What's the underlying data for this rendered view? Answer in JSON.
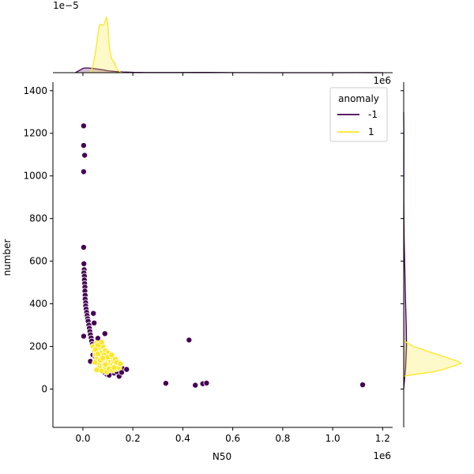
{
  "chart_data": {
    "type": "scatter",
    "subtype": "jointplot",
    "xlabel": "N50",
    "ylabel": "number",
    "x_offset_label": "1e6",
    "top_offset_label": "1e−5",
    "right_offset_label": "1e6",
    "xlim": [
      -0.12,
      1.24
    ],
    "ylim": [
      -180,
      1440
    ],
    "x_ticks": [
      0.0,
      0.2,
      0.4,
      0.6,
      0.8,
      1.0,
      1.2
    ],
    "x_tick_labels": [
      "0.0",
      "0.2",
      "0.4",
      "0.6",
      "0.8",
      "1.0",
      "1.2"
    ],
    "y_ticks": [
      0,
      200,
      400,
      600,
      800,
      1000,
      1200,
      1400
    ],
    "y_tick_labels": [
      "0",
      "200",
      "400",
      "600",
      "800",
      "1000",
      "1200",
      "1400"
    ],
    "legend": {
      "title": "anomaly",
      "position": "top-right",
      "entries": [
        "-1",
        "1"
      ]
    },
    "colors": {
      "-1": "#440154",
      "1": "#fde725"
    },
    "grid": false,
    "series": [
      {
        "name": "-1",
        "color": "#440154",
        "points": [
          [
            0.003,
            1235
          ],
          [
            0.003,
            1143
          ],
          [
            0.007,
            1097
          ],
          [
            0.003,
            1020
          ],
          [
            0.003,
            665
          ],
          [
            0.004,
            588
          ],
          [
            0.005,
            560
          ],
          [
            0.004,
            545
          ],
          [
            0.006,
            530
          ],
          [
            0.006,
            512
          ],
          [
            0.007,
            495
          ],
          [
            0.008,
            478
          ],
          [
            0.008,
            460
          ],
          [
            0.009,
            440
          ],
          [
            0.009,
            422
          ],
          [
            0.011,
            405
          ],
          [
            0.011,
            390
          ],
          [
            0.013,
            375
          ],
          [
            0.015,
            360
          ],
          [
            0.017,
            345
          ],
          [
            0.019,
            330
          ],
          [
            0.021,
            318
          ],
          [
            0.024,
            300
          ],
          [
            0.026,
            285
          ],
          [
            0.028,
            270
          ],
          [
            0.03,
            255
          ],
          [
            0.033,
            240
          ],
          [
            0.035,
            225
          ],
          [
            0.038,
            210
          ],
          [
            0.003,
            248
          ],
          [
            0.042,
            355
          ],
          [
            0.045,
            310
          ],
          [
            0.06,
            238
          ],
          [
            0.088,
            260
          ],
          [
            0.03,
            130
          ],
          [
            0.04,
            160
          ],
          [
            0.05,
            150
          ],
          [
            0.07,
            125
          ],
          [
            0.08,
            110
          ],
          [
            0.09,
            100
          ],
          [
            0.1,
            95
          ],
          [
            0.11,
            85
          ],
          [
            0.12,
            90
          ],
          [
            0.14,
            100
          ],
          [
            0.15,
            110
          ],
          [
            0.16,
            95
          ],
          [
            0.175,
            92
          ],
          [
            0.145,
            60
          ],
          [
            0.095,
            70
          ],
          [
            0.125,
            75
          ],
          [
            0.085,
            80
          ],
          [
            0.105,
            65
          ],
          [
            0.135,
            82
          ],
          [
            0.155,
            78
          ],
          [
            0.425,
            230
          ],
          [
            0.332,
            27
          ],
          [
            0.45,
            18
          ],
          [
            0.48,
            25
          ],
          [
            0.495,
            28
          ],
          [
            1.12,
            20
          ]
        ]
      },
      {
        "name": "1",
        "color": "#fde725",
        "points": [
          [
            0.04,
            200
          ],
          [
            0.045,
            180
          ],
          [
            0.05,
            160
          ],
          [
            0.055,
            140
          ],
          [
            0.06,
            120
          ],
          [
            0.065,
            190
          ],
          [
            0.07,
            170
          ],
          [
            0.075,
            150
          ],
          [
            0.08,
            130
          ],
          [
            0.085,
            110
          ],
          [
            0.09,
            100
          ],
          [
            0.095,
            140
          ],
          [
            0.1,
            125
          ],
          [
            0.105,
            115
          ],
          [
            0.11,
            135
          ],
          [
            0.115,
            105
          ],
          [
            0.12,
            120
          ],
          [
            0.125,
            130
          ],
          [
            0.13,
            110
          ],
          [
            0.135,
            95
          ],
          [
            0.14,
            115
          ],
          [
            0.145,
            125
          ],
          [
            0.07,
            210
          ],
          [
            0.08,
            200
          ],
          [
            0.055,
            215
          ],
          [
            0.06,
            205
          ],
          [
            0.075,
            220
          ],
          [
            0.05,
            185
          ],
          [
            0.09,
            180
          ],
          [
            0.1,
            170
          ],
          [
            0.11,
            150
          ],
          [
            0.065,
            100
          ],
          [
            0.055,
            90
          ],
          [
            0.075,
            85
          ],
          [
            0.095,
            80
          ],
          [
            0.085,
            160
          ],
          [
            0.105,
            95
          ],
          [
            0.12,
            88
          ],
          [
            0.13,
            140
          ],
          [
            0.145,
            100
          ],
          [
            0.07,
            135
          ],
          [
            0.08,
            145
          ],
          [
            0.06,
            165
          ],
          [
            0.09,
            115
          ],
          [
            0.1,
            150
          ],
          [
            0.115,
            160
          ],
          [
            0.125,
            100
          ],
          [
            0.135,
            125
          ],
          [
            0.15,
            118
          ],
          [
            0.048,
            125
          ]
        ]
      }
    ],
    "marginal_x_density": [
      {
        "name": "-1",
        "x": [
          -0.03,
          -0.01,
          0.0,
          0.01,
          0.02,
          0.04,
          0.06,
          0.08,
          0.1,
          0.13,
          0.16,
          0.2,
          0.25,
          0.3,
          0.35,
          0.4,
          0.45,
          0.5,
          0.6,
          0.8,
          1.0,
          1.1,
          1.15,
          1.2
        ],
        "y": [
          0.0,
          0.12,
          0.18,
          0.2,
          0.2,
          0.18,
          0.15,
          0.12,
          0.08,
          0.05,
          0.03,
          0.015,
          0.008,
          0.006,
          0.008,
          0.008,
          0.01,
          0.01,
          0.004,
          0.0,
          0.0,
          0.004,
          0.002,
          0.0
        ]
      },
      {
        "name": "1",
        "x": [
          0.025,
          0.03,
          0.035,
          0.04,
          0.045,
          0.05,
          0.055,
          0.06,
          0.065,
          0.07,
          0.075,
          0.08,
          0.085,
          0.09,
          0.095,
          0.1,
          0.105,
          0.11,
          0.115,
          0.12,
          0.125,
          0.13,
          0.14,
          0.15,
          0.16
        ],
        "y": [
          0.0,
          0.05,
          0.15,
          0.3,
          0.55,
          0.85,
          1.2,
          1.6,
          1.95,
          2.05,
          2.0,
          2.0,
          2.05,
          2.2,
          2.35,
          2.0,
          1.2,
          0.8,
          0.6,
          0.5,
          0.45,
          0.3,
          0.1,
          0.02,
          0.0
        ]
      }
    ],
    "marginal_y_density": [
      {
        "name": "-1",
        "y": [
          0,
          100,
          200,
          300,
          400,
          500,
          600,
          700,
          800,
          900,
          1000,
          1100,
          1200,
          1300
        ],
        "v": [
          0.0,
          0.6,
          0.9,
          0.8,
          0.6,
          0.45,
          0.3,
          0.15,
          0.08,
          0.04,
          0.05,
          0.06,
          0.05,
          0.0
        ]
      },
      {
        "name": "1",
        "y": [
          60,
          70,
          80,
          90,
          100,
          110,
          120,
          130,
          140,
          150,
          160,
          170,
          180,
          190,
          200,
          215,
          230
        ],
        "v": [
          0.0,
          4.0,
          9.0,
          12.0,
          14.0,
          16.0,
          18.0,
          17.0,
          15.0,
          13.0,
          11.0,
          9.0,
          7.0,
          5.0,
          3.0,
          1.2,
          0.0
        ]
      }
    ]
  }
}
